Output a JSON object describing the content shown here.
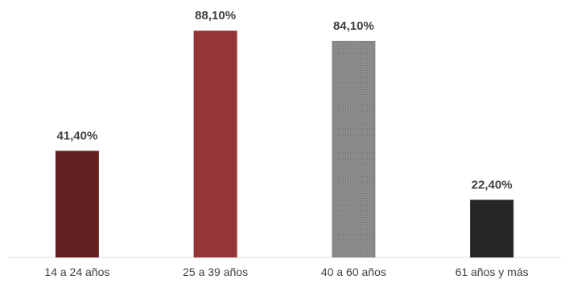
{
  "chart_data": {
    "type": "bar",
    "categories": [
      "14 a 24 años",
      "25 a 39 años",
      "40 a 60 años",
      "61 años y más"
    ],
    "values": [
      41.4,
      88.1,
      84.1,
      22.4
    ],
    "value_labels": [
      "41,40%",
      "88,10%",
      "84,10%",
      "22,40%"
    ],
    "bar_colors": [
      "#632222",
      "#963535",
      "#888888",
      "#262626"
    ],
    "ylim": [
      0,
      100
    ],
    "grid": false,
    "legend": "none"
  }
}
